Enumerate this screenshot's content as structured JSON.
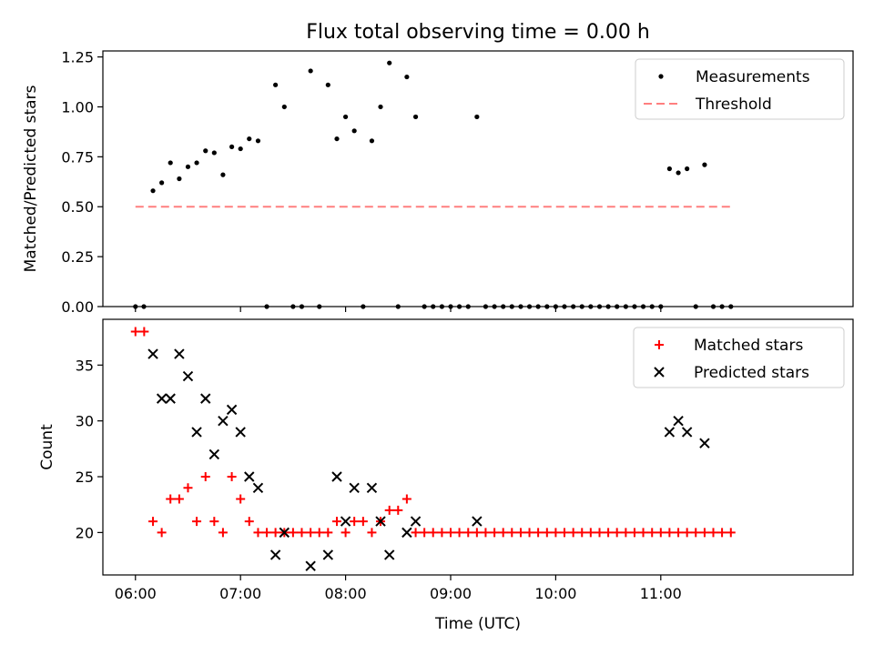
{
  "title": "Flux total observing time = 0.00 h",
  "chart_data": [
    {
      "type": "scatter",
      "ylabel": "Matched/Predicted stars",
      "xlabel": "",
      "x_range_hours": [
        5.69,
        12.83
      ],
      "ylim": [
        0,
        1.28
      ],
      "yticks": [
        0,
        0.25,
        0.5,
        0.75,
        1.0,
        1.25
      ],
      "ytick_labels": [
        "0.00",
        "0.25",
        "0.50",
        "0.75",
        "1.00",
        "1.25"
      ],
      "legend": {
        "position": "top-right",
        "entries": [
          "Measurements",
          "Threshold"
        ]
      },
      "threshold": {
        "name": "Threshold",
        "value": 0.5,
        "x_from": 6.0,
        "x_to": 11.67,
        "color": "#ff7f7f"
      },
      "series": [
        {
          "name": "Measurements",
          "color": "#000000",
          "points": [
            [
              6.0,
              0.0
            ],
            [
              6.08,
              0.0
            ],
            [
              6.167,
              0.58
            ],
            [
              6.25,
              0.62
            ],
            [
              6.333,
              0.72
            ],
            [
              6.417,
              0.64
            ],
            [
              6.5,
              0.7
            ],
            [
              6.583,
              0.72
            ],
            [
              6.667,
              0.78
            ],
            [
              6.75,
              0.77
            ],
            [
              6.833,
              0.66
            ],
            [
              6.917,
              0.8
            ],
            [
              7.0,
              0.79
            ],
            [
              7.083,
              0.84
            ],
            [
              7.167,
              0.83
            ],
            [
              7.25,
              0.0
            ],
            [
              7.333,
              1.11
            ],
            [
              7.417,
              1.0
            ],
            [
              7.5,
              0.0
            ],
            [
              7.583,
              0.0
            ],
            [
              7.667,
              1.18
            ],
            [
              7.75,
              0.0
            ],
            [
              7.833,
              1.11
            ],
            [
              7.917,
              0.84
            ],
            [
              8.0,
              0.95
            ],
            [
              8.083,
              0.88
            ],
            [
              8.167,
              0.0
            ],
            [
              8.25,
              0.83
            ],
            [
              8.333,
              1.0
            ],
            [
              8.417,
              1.22
            ],
            [
              8.5,
              0.0
            ],
            [
              8.583,
              1.15
            ],
            [
              8.667,
              0.95
            ],
            [
              8.75,
              0.0
            ],
            [
              8.833,
              0.0
            ],
            [
              8.917,
              0.0
            ],
            [
              9.0,
              0.0
            ],
            [
              9.083,
              0.0
            ],
            [
              9.167,
              0.0
            ],
            [
              9.25,
              0.95
            ],
            [
              9.333,
              0.0
            ],
            [
              9.417,
              0.0
            ],
            [
              9.5,
              0.0
            ],
            [
              9.583,
              0.0
            ],
            [
              9.667,
              0.0
            ],
            [
              9.75,
              0.0
            ],
            [
              9.833,
              0.0
            ],
            [
              9.917,
              0.0
            ],
            [
              10.0,
              0.0
            ],
            [
              10.083,
              0.0
            ],
            [
              10.167,
              0.0
            ],
            [
              10.25,
              0.0
            ],
            [
              10.333,
              0.0
            ],
            [
              10.417,
              0.0
            ],
            [
              10.5,
              0.0
            ],
            [
              10.583,
              0.0
            ],
            [
              10.667,
              0.0
            ],
            [
              10.75,
              0.0
            ],
            [
              10.833,
              0.0
            ],
            [
              10.917,
              0.0
            ],
            [
              11.0,
              0.0
            ],
            [
              11.083,
              0.69
            ],
            [
              11.167,
              0.67
            ],
            [
              11.25,
              0.69
            ],
            [
              11.333,
              0.0
            ],
            [
              11.417,
              0.71
            ],
            [
              11.5,
              0.0
            ],
            [
              11.583,
              0.0
            ],
            [
              11.667,
              0.0
            ]
          ]
        }
      ]
    },
    {
      "type": "scatter",
      "xlabel": "Time (UTC)",
      "ylabel": "Count",
      "x_range_hours": [
        5.69,
        12.83
      ],
      "ylim": [
        16.2,
        39.1
      ],
      "yticks": [
        20,
        25,
        30,
        35
      ],
      "ytick_labels": [
        "20",
        "25",
        "30",
        "35"
      ],
      "xticks": [
        6,
        7,
        8,
        9,
        10,
        11
      ],
      "xtick_labels": [
        "06:00",
        "07:00",
        "08:00",
        "09:00",
        "10:00",
        "11:00"
      ],
      "legend": {
        "position": "top-right",
        "entries": [
          "Matched stars",
          "Predicted stars"
        ]
      },
      "series": [
        {
          "name": "Matched stars",
          "marker": "plus",
          "color": "#ff0000",
          "points": [
            [
              6.0,
              38
            ],
            [
              6.083,
              38
            ],
            [
              6.167,
              21
            ],
            [
              6.25,
              20
            ],
            [
              6.333,
              23
            ],
            [
              6.417,
              23
            ],
            [
              6.5,
              24
            ],
            [
              6.583,
              21
            ],
            [
              6.667,
              25
            ],
            [
              6.75,
              21
            ],
            [
              6.833,
              20
            ],
            [
              6.917,
              25
            ],
            [
              7.0,
              23
            ],
            [
              7.083,
              21
            ],
            [
              7.167,
              20
            ],
            [
              7.25,
              20
            ],
            [
              7.333,
              20
            ],
            [
              7.417,
              20
            ],
            [
              7.5,
              20
            ],
            [
              7.583,
              20
            ],
            [
              7.667,
              20
            ],
            [
              7.75,
              20
            ],
            [
              7.833,
              20
            ],
            [
              7.917,
              21
            ],
            [
              8.0,
              20
            ],
            [
              8.083,
              21
            ],
            [
              8.167,
              21
            ],
            [
              8.25,
              20
            ],
            [
              8.333,
              21
            ],
            [
              8.417,
              22
            ],
            [
              8.5,
              22
            ],
            [
              8.583,
              23
            ],
            [
              8.667,
              20
            ],
            [
              8.75,
              20
            ],
            [
              8.833,
              20
            ],
            [
              8.917,
              20
            ],
            [
              9.0,
              20
            ],
            [
              9.083,
              20
            ],
            [
              9.167,
              20
            ],
            [
              9.25,
              20
            ],
            [
              9.333,
              20
            ],
            [
              9.417,
              20
            ],
            [
              9.5,
              20
            ],
            [
              9.583,
              20
            ],
            [
              9.667,
              20
            ],
            [
              9.75,
              20
            ],
            [
              9.833,
              20
            ],
            [
              9.917,
              20
            ],
            [
              10.0,
              20
            ],
            [
              10.083,
              20
            ],
            [
              10.167,
              20
            ],
            [
              10.25,
              20
            ],
            [
              10.333,
              20
            ],
            [
              10.417,
              20
            ],
            [
              10.5,
              20
            ],
            [
              10.583,
              20
            ],
            [
              10.667,
              20
            ],
            [
              10.75,
              20
            ],
            [
              10.833,
              20
            ],
            [
              10.917,
              20
            ],
            [
              11.0,
              20
            ],
            [
              11.083,
              20
            ],
            [
              11.167,
              20
            ],
            [
              11.25,
              20
            ],
            [
              11.333,
              20
            ],
            [
              11.417,
              20
            ],
            [
              11.5,
              20
            ],
            [
              11.583,
              20
            ],
            [
              11.667,
              20
            ]
          ]
        },
        {
          "name": "Predicted stars",
          "marker": "x",
          "color": "#000000",
          "points": [
            [
              6.167,
              36
            ],
            [
              6.25,
              32
            ],
            [
              6.333,
              32
            ],
            [
              6.417,
              36
            ],
            [
              6.5,
              34
            ],
            [
              6.583,
              29
            ],
            [
              6.667,
              32
            ],
            [
              6.75,
              27
            ],
            [
              6.833,
              30
            ],
            [
              6.917,
              31
            ],
            [
              7.0,
              29
            ],
            [
              7.083,
              25
            ],
            [
              7.167,
              24
            ],
            [
              7.333,
              18
            ],
            [
              7.417,
              20
            ],
            [
              7.667,
              17
            ],
            [
              7.833,
              18
            ],
            [
              7.917,
              25
            ],
            [
              8.0,
              21
            ],
            [
              8.083,
              24
            ],
            [
              8.25,
              24
            ],
            [
              8.333,
              21
            ],
            [
              8.417,
              18
            ],
            [
              8.583,
              20
            ],
            [
              8.667,
              21
            ],
            [
              9.25,
              21
            ],
            [
              11.083,
              29
            ],
            [
              11.167,
              30
            ],
            [
              11.25,
              29
            ],
            [
              11.417,
              28
            ]
          ]
        }
      ]
    }
  ]
}
